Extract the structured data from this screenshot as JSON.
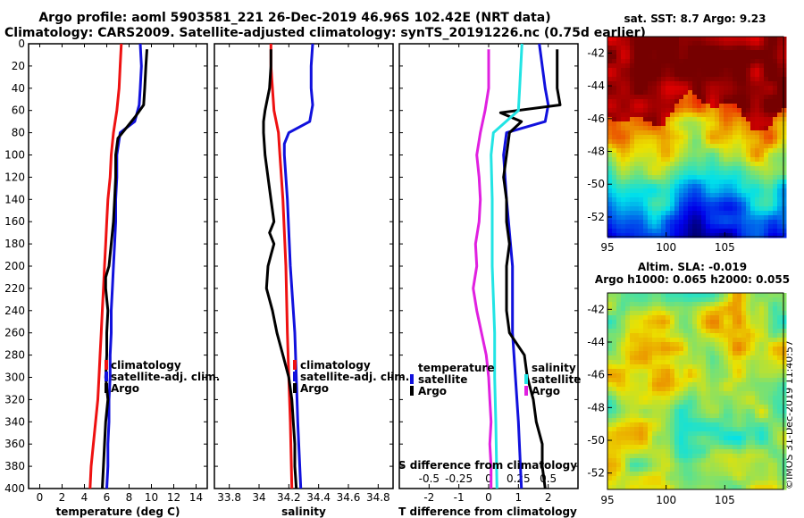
{
  "header": {
    "line1": "Argo profile: aoml 5903581_221 26-Dec-2019 46.96S 102.42E (NRT data)",
    "line2": "Climatology: CARS2009. Satellite-adjusted climatology: synTS_20191226.nc (0.75d earlier)"
  },
  "stamp": "©IMOS 31-Dec-2019 11:40:57",
  "colors": {
    "climatology": "#ee1111",
    "satellite": "#1111dd",
    "argo": "#000000",
    "sal_satellite": "#22e4e4",
    "sal_argo": "#e020e0"
  },
  "chart_data": [
    {
      "id": "temperature",
      "type": "line",
      "xlabel": "temperature (deg C)",
      "ylabel": "",
      "xlim": [
        -1,
        15
      ],
      "ylim": [
        400,
        0
      ],
      "xticks": [
        "0",
        "2",
        "4",
        "6",
        "8",
        "10",
        "12",
        "14"
      ],
      "xtick_values": [
        0,
        2,
        4,
        6,
        8,
        10,
        12,
        14
      ],
      "yticks": [
        "0",
        "20",
        "40",
        "60",
        "80",
        "100",
        "120",
        "140",
        "160",
        "180",
        "200",
        "220",
        "240",
        "260",
        "280",
        "300",
        "320",
        "340",
        "360",
        "380",
        "400"
      ],
      "legend": [
        "climatology",
        "satellite-adj. clim.",
        "Argo"
      ],
      "series": [
        {
          "name": "climatology",
          "color": "#ee1111",
          "depth": [
            0,
            20,
            40,
            60,
            80,
            100,
            120,
            140,
            160,
            180,
            200,
            220,
            240,
            260,
            280,
            300,
            320,
            340,
            360,
            380,
            400
          ],
          "values": [
            7.3,
            7.2,
            7.1,
            6.9,
            6.6,
            6.4,
            6.3,
            6.1,
            6.0,
            5.9,
            5.8,
            5.7,
            5.6,
            5.5,
            5.4,
            5.3,
            5.2,
            5.0,
            4.8,
            4.6,
            4.5
          ]
        },
        {
          "name": "satellite-adj. clim.",
          "color": "#1111dd",
          "depth": [
            0,
            20,
            40,
            55,
            70,
            80,
            100,
            120,
            140,
            160,
            180,
            200,
            220,
            240,
            260,
            280,
            300,
            320,
            340,
            360,
            380,
            400
          ],
          "values": [
            9.0,
            9.1,
            9.0,
            8.9,
            8.5,
            7.2,
            6.9,
            6.9,
            6.8,
            6.8,
            6.7,
            6.6,
            6.5,
            6.4,
            6.4,
            6.3,
            6.3,
            6.2,
            6.2,
            6.1,
            6.1,
            6.0
          ]
        },
        {
          "name": "Argo",
          "color": "#000000",
          "depth": [
            5,
            20,
            40,
            55,
            65,
            75,
            85,
            100,
            120,
            140,
            160,
            180,
            200,
            210,
            220,
            240,
            260,
            280,
            300,
            320,
            340,
            360,
            380,
            400
          ],
          "values": [
            9.6,
            9.5,
            9.4,
            9.3,
            8.6,
            7.8,
            7.0,
            6.8,
            6.8,
            6.7,
            6.6,
            6.4,
            6.2,
            5.9,
            5.9,
            6.1,
            6.0,
            6.0,
            5.9,
            6.1,
            5.9,
            5.8,
            5.7,
            5.6
          ]
        }
      ]
    },
    {
      "id": "salinity",
      "type": "line",
      "xlabel": "salinity",
      "ylabel": "",
      "xlim": [
        33.7,
        34.9
      ],
      "ylim": [
        400,
        0
      ],
      "xticks": [
        "33.8",
        "34",
        "34.2",
        "34.4",
        "34.6",
        "34.8"
      ],
      "xtick_values": [
        33.8,
        34.0,
        34.2,
        34.4,
        34.6,
        34.8
      ],
      "legend": [
        "climatology",
        "satellite-adj. clim.",
        "Argo"
      ],
      "series": [
        {
          "name": "climatology",
          "color": "#ee1111",
          "depth": [
            0,
            20,
            40,
            60,
            80,
            100,
            140,
            200,
            260,
            300,
            340,
            400
          ],
          "values": [
            34.08,
            34.08,
            34.09,
            34.1,
            34.13,
            34.14,
            34.16,
            34.18,
            34.19,
            34.2,
            34.21,
            34.22
          ]
        },
        {
          "name": "satellite-adj. clim.",
          "color": "#1111dd",
          "depth": [
            0,
            20,
            40,
            55,
            70,
            80,
            90,
            100,
            140,
            200,
            260,
            300,
            340,
            400
          ],
          "values": [
            34.36,
            34.35,
            34.35,
            34.36,
            34.34,
            34.2,
            34.17,
            34.17,
            34.19,
            34.21,
            34.24,
            34.25,
            34.26,
            34.28
          ]
        },
        {
          "name": "Argo",
          "color": "#000000",
          "depth": [
            5,
            20,
            40,
            60,
            70,
            80,
            100,
            120,
            140,
            160,
            170,
            180,
            190,
            200,
            220,
            240,
            260,
            280,
            300,
            320,
            340,
            360,
            380,
            400
          ],
          "values": [
            34.08,
            34.08,
            34.07,
            34.04,
            34.03,
            34.03,
            34.04,
            34.06,
            34.08,
            34.1,
            34.07,
            34.1,
            34.08,
            34.06,
            34.05,
            34.09,
            34.12,
            34.16,
            34.2,
            34.22,
            34.23,
            34.24,
            34.24,
            34.25
          ]
        }
      ]
    },
    {
      "id": "differences",
      "type": "line",
      "xlabel": "T difference from climatology",
      "top_axis_label": "S difference from climatology",
      "xlim": [
        -3,
        3
      ],
      "ylim": [
        400,
        0
      ],
      "xticks": [
        "-2",
        "-1",
        "0",
        "1",
        "2"
      ],
      "xtick_values": [
        -2,
        -1,
        0,
        1,
        2
      ],
      "s_xticks": [
        "-0.5",
        "-0.25",
        "0",
        "0.25",
        "0.5"
      ],
      "s_xtick_values": [
        -0.5,
        -0.25,
        0,
        0.25,
        0.5
      ],
      "legend_temperature": [
        "temperature",
        "satellite",
        "Argo"
      ],
      "legend_salinity": [
        "salinity",
        "satellite",
        "Argo"
      ],
      "series": [
        {
          "name": "T satellite",
          "color": "#1111dd",
          "depth": [
            0,
            20,
            40,
            55,
            70,
            80,
            100,
            140,
            200,
            260,
            300,
            340,
            400
          ],
          "values": [
            1.7,
            1.8,
            1.9,
            2.0,
            1.9,
            0.6,
            0.5,
            0.6,
            0.8,
            0.8,
            0.9,
            1.0,
            1.1
          ]
        },
        {
          "name": "T Argo",
          "color": "#000000",
          "depth": [
            5,
            20,
            40,
            55,
            62,
            70,
            80,
            100,
            120,
            140,
            160,
            180,
            200,
            220,
            240,
            260,
            280,
            300,
            320,
            340,
            360,
            380,
            400
          ],
          "values": [
            2.3,
            2.3,
            2.3,
            2.4,
            0.4,
            1.1,
            0.7,
            0.6,
            0.5,
            0.6,
            0.6,
            0.7,
            0.6,
            0.6,
            0.6,
            0.7,
            1.2,
            1.3,
            1.5,
            1.6,
            1.8,
            1.8,
            1.9
          ]
        },
        {
          "name": "S satellite",
          "color": "#22e4e4",
          "depth": [
            0,
            20,
            40,
            60,
            80,
            100,
            140,
            200,
            260,
            300,
            340,
            400
          ],
          "values": [
            0.28,
            0.27,
            0.26,
            0.25,
            0.04,
            0.02,
            0.03,
            0.03,
            0.05,
            0.05,
            0.06,
            0.07
          ]
        },
        {
          "name": "S Argo",
          "color": "#e020e0",
          "depth": [
            5,
            40,
            60,
            80,
            100,
            120,
            140,
            160,
            180,
            200,
            220,
            240,
            260,
            280,
            300,
            320,
            340,
            360,
            380,
            400
          ],
          "values": [
            0.0,
            0.0,
            -0.03,
            -0.07,
            -0.1,
            -0.08,
            -0.07,
            -0.08,
            -0.11,
            -0.1,
            -0.13,
            -0.1,
            -0.06,
            -0.02,
            0.0,
            0.01,
            0.02,
            0.01,
            0.02,
            0.02
          ]
        }
      ]
    },
    {
      "id": "sst_map",
      "type": "heatmap",
      "title": "sat. SST: 8.7 Argo: 9.23",
      "xlim": [
        95,
        110
      ],
      "ylim": [
        -53.2,
        -41.0
      ],
      "xticks": [
        "95",
        "100",
        "105"
      ],
      "xtick_values": [
        95,
        100,
        105
      ],
      "yticks": [
        "-42",
        "-44",
        "-46",
        "-48",
        "-50",
        "-52"
      ],
      "ytick_values": [
        -42,
        -44,
        -46,
        -48,
        -50,
        -52
      ]
    },
    {
      "id": "sla_map",
      "type": "heatmap",
      "title": "Altim. SLA: -0.019",
      "subtitle": "Argo h1000: 0.065 h2000: 0.055",
      "xlim": [
        95,
        110
      ],
      "ylim": [
        -53.0,
        -41.0
      ],
      "xticks": [
        "95",
        "100",
        "105"
      ],
      "xtick_values": [
        95,
        100,
        105
      ],
      "yticks": [
        "-42",
        "-44",
        "-46",
        "-48",
        "-50",
        "-52"
      ],
      "ytick_values": [
        -42,
        -44,
        -46,
        -48,
        -50,
        -52
      ]
    }
  ]
}
